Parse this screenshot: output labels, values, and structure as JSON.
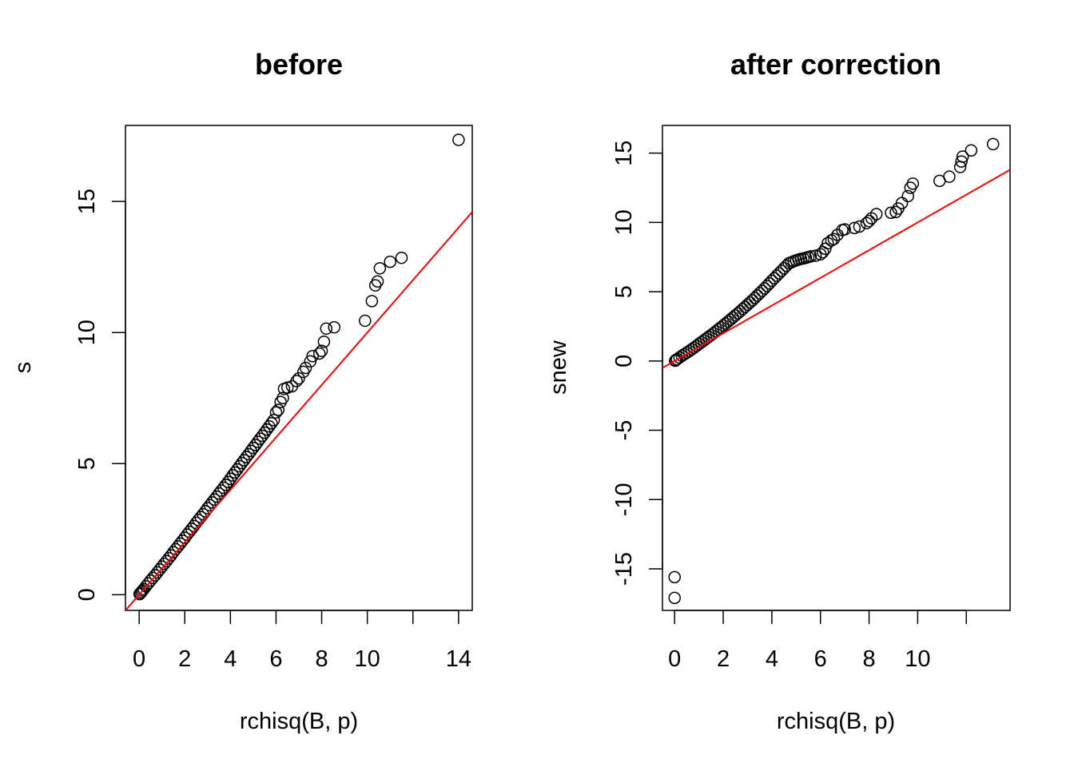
{
  "chart_data": [
    {
      "type": "scatter",
      "title": "before",
      "xlabel": "rchisq(B, p)",
      "ylabel": "s",
      "xlim": [
        -0.6,
        14.6
      ],
      "ylim": [
        -0.6,
        17.9
      ],
      "xticks": [
        0,
        2,
        4,
        6,
        8,
        10,
        12,
        14
      ],
      "xtick_labels": [
        "0",
        "2",
        "4",
        "6",
        "8",
        "10",
        "",
        "14"
      ],
      "yticks": [
        0,
        5,
        10,
        15
      ],
      "ytick_labels": [
        "0",
        "5",
        "10",
        "15"
      ],
      "grid": false,
      "line_color": "#ff0000",
      "point_color": "#000000",
      "reference_line": {
        "intercept": 0.0,
        "slope": 1.0
      },
      "x": [
        0.02,
        0.05,
        0.1,
        0.15,
        0.2,
        0.3,
        0.4,
        0.5,
        0.6,
        0.7,
        0.8,
        0.9,
        1.0,
        1.1,
        1.2,
        1.3,
        1.4,
        1.5,
        1.6,
        1.7,
        1.8,
        1.9,
        2.0,
        2.1,
        2.2,
        2.3,
        2.4,
        2.5,
        2.6,
        2.7,
        2.8,
        2.9,
        3.0,
        3.1,
        3.2,
        3.3,
        3.4,
        3.5,
        3.6,
        3.7,
        3.8,
        3.9,
        4.0,
        4.1,
        4.2,
        4.3,
        4.4,
        4.5,
        4.6,
        4.7,
        4.8,
        4.9,
        5.0,
        5.1,
        5.2,
        5.3,
        5.4,
        5.5,
        5.6,
        5.7,
        5.8,
        5.9,
        6.0,
        6.1,
        6.2,
        6.3,
        6.35,
        6.5,
        6.7,
        6.9,
        7.0,
        7.2,
        7.3,
        7.5,
        7.6,
        7.9,
        8.0,
        8.1,
        8.2,
        8.55,
        9.9,
        10.2,
        10.35,
        10.45,
        10.55,
        11.0,
        11.5,
        14.0
      ],
      "y": [
        0.02,
        0.05,
        0.1,
        0.16,
        0.21,
        0.32,
        0.43,
        0.54,
        0.64,
        0.74,
        0.85,
        0.96,
        1.07,
        1.18,
        1.28,
        1.39,
        1.5,
        1.62,
        1.73,
        1.84,
        1.95,
        2.06,
        2.17,
        2.29,
        2.4,
        2.51,
        2.62,
        2.74,
        2.85,
        2.96,
        3.07,
        3.18,
        3.3,
        3.41,
        3.52,
        3.63,
        3.74,
        3.86,
        3.97,
        4.08,
        4.19,
        4.3,
        4.42,
        4.55,
        4.66,
        4.78,
        4.9,
        5.02,
        5.13,
        5.25,
        5.36,
        5.48,
        5.6,
        5.71,
        5.83,
        5.95,
        6.06,
        6.18,
        6.3,
        6.42,
        6.54,
        6.66,
        6.95,
        7.05,
        7.35,
        7.5,
        7.85,
        7.9,
        7.95,
        8.15,
        8.25,
        8.5,
        8.65,
        8.9,
        9.1,
        9.2,
        9.3,
        9.65,
        10.15,
        10.2,
        10.45,
        11.2,
        11.8,
        11.95,
        12.45,
        12.7,
        12.85,
        17.35
      ]
    },
    {
      "type": "scatter",
      "title": "after correction",
      "xlabel": "rchisq(B, p)",
      "ylabel": "snew",
      "xlim": [
        -0.5,
        13.8
      ],
      "ylim": [
        -18.0,
        17.0
      ],
      "xticks": [
        0,
        2,
        4,
        6,
        8,
        10,
        12
      ],
      "xtick_labels": [
        "0",
        "2",
        "4",
        "6",
        "8",
        "10",
        ""
      ],
      "yticks": [
        -15,
        -10,
        -5,
        0,
        5,
        10,
        15
      ],
      "ytick_labels": [
        "-15",
        "-10",
        "-5",
        "0",
        "5",
        "10",
        "15"
      ],
      "grid": false,
      "line_color": "#ff0000",
      "point_color": "#000000",
      "reference_line": {
        "intercept": 0.0,
        "slope": 1.0
      },
      "x": [
        0.0,
        0.0,
        0.02,
        0.05,
        0.1,
        0.2,
        0.3,
        0.4,
        0.5,
        0.6,
        0.7,
        0.8,
        0.9,
        1.0,
        1.1,
        1.2,
        1.3,
        1.4,
        1.5,
        1.6,
        1.7,
        1.8,
        1.9,
        2.0,
        2.1,
        2.2,
        2.3,
        2.4,
        2.5,
        2.6,
        2.7,
        2.8,
        2.9,
        3.0,
        3.1,
        3.2,
        3.3,
        3.4,
        3.5,
        3.6,
        3.7,
        3.8,
        3.9,
        4.0,
        4.1,
        4.2,
        4.3,
        4.4,
        4.5,
        4.6,
        4.7,
        4.8,
        4.9,
        5.0,
        5.1,
        5.2,
        5.3,
        5.4,
        5.5,
        5.6,
        5.8,
        6.0,
        6.1,
        6.2,
        6.3,
        6.45,
        6.55,
        6.7,
        6.9,
        7.0,
        7.4,
        7.6,
        7.9,
        8.0,
        8.1,
        8.3,
        8.9,
        9.1,
        9.2,
        9.35,
        9.6,
        9.7,
        9.8,
        10.9,
        11.3,
        11.75,
        11.8,
        11.85,
        12.2,
        13.1
      ],
      "y": [
        -17.1,
        -15.6,
        0.02,
        0.06,
        0.13,
        0.25,
        0.37,
        0.49,
        0.6,
        0.72,
        0.84,
        0.96,
        1.09,
        1.22,
        1.35,
        1.48,
        1.61,
        1.74,
        1.87,
        2.0,
        2.14,
        2.28,
        2.42,
        2.56,
        2.7,
        2.85,
        2.99,
        3.14,
        3.29,
        3.44,
        3.59,
        3.75,
        3.9,
        4.06,
        4.22,
        4.38,
        4.55,
        4.72,
        4.89,
        5.06,
        5.24,
        5.42,
        5.6,
        5.79,
        5.97,
        6.15,
        6.33,
        6.51,
        6.69,
        6.87,
        7.05,
        7.12,
        7.2,
        7.26,
        7.32,
        7.37,
        7.4,
        7.45,
        7.5,
        7.55,
        7.6,
        7.7,
        7.85,
        8.1,
        8.5,
        8.7,
        8.8,
        9.1,
        9.45,
        9.5,
        9.6,
        9.7,
        9.95,
        10.1,
        10.3,
        10.6,
        10.7,
        10.75,
        11.0,
        11.4,
        11.9,
        12.5,
        12.8,
        13.0,
        13.3,
        14.0,
        14.4,
        14.75,
        15.2,
        15.65
      ]
    }
  ]
}
